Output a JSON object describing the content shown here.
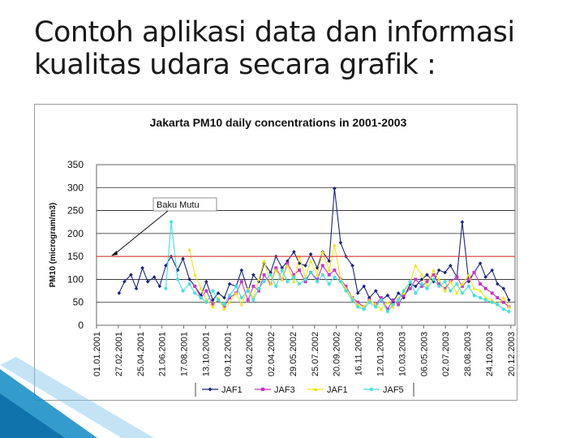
{
  "slide": {
    "title_line1": "Contoh aplikasi data dan informasi",
    "title_line2": "kualitas udara secara grafik :"
  },
  "colors": {
    "JAF1_navy": "#1a237e",
    "JAF3": "#cc33cc",
    "JAF1_yellow": "#f0e610",
    "JAF5": "#40e0e0",
    "baku_mutu": "#e04040",
    "decoration": "#1e90c8"
  },
  "chart_data": {
    "type": "line",
    "title": "Jakarta PM10 daily concentrations in 2001-2003",
    "ylabel": "PM10 (microgram/m3)",
    "xlabel": "",
    "ylim": [
      0,
      350
    ],
    "yticks": [
      0,
      50,
      100,
      150,
      200,
      250,
      300,
      350
    ],
    "xlim": [
      "2001-01-01",
      "2003-12-31"
    ],
    "xtick_labels": [
      "01.01.2001",
      "27.02.2001",
      "25.04.2001",
      "21.06.2001",
      "17.08.2001",
      "13.10.2001",
      "09.12.2001",
      "04.02.2002",
      "02.04.2002",
      "29.05.2002",
      "25.07.2002",
      "20.09.2002",
      "16.11.2002",
      "12.01.2003",
      "10.03.2003",
      "06.05.2003",
      "02.07.2003",
      "28.08.2003",
      "24.10.2003",
      "20.12.2003"
    ],
    "grid": "horizontal",
    "reference_line": {
      "value": 150,
      "label": "Baku Mutu"
    },
    "legend_position": "bottom",
    "series": [
      {
        "name": "JAF1",
        "color": "#1a237e",
        "marker": "diamond",
        "x": [
          "2001-03-01",
          "2001-03-15",
          "2001-04-01",
          "2001-04-15",
          "2001-05-01",
          "2001-05-15",
          "2001-06-01",
          "2001-06-15",
          "2001-07-01",
          "2001-07-15",
          "2001-08-01",
          "2001-08-15",
          "2001-09-01",
          "2001-09-15",
          "2001-10-01",
          "2001-10-15",
          "2001-11-01",
          "2001-11-15",
          "2001-12-01",
          "2001-12-15",
          "2002-01-01",
          "2002-01-15",
          "2002-02-01",
          "2002-02-15",
          "2002-03-01",
          "2002-03-15",
          "2002-04-01",
          "2002-04-15",
          "2002-05-01",
          "2002-05-15",
          "2002-06-01",
          "2002-06-15",
          "2002-07-01",
          "2002-07-15",
          "2002-08-01",
          "2002-08-15",
          "2002-09-01",
          "2002-09-15",
          "2002-10-01",
          "2002-10-15",
          "2002-11-01",
          "2002-11-15",
          "2002-12-01",
          "2002-12-15",
          "2003-01-01",
          "2003-01-15",
          "2003-02-01",
          "2003-02-15",
          "2003-03-01",
          "2003-03-15",
          "2003-04-01",
          "2003-04-15",
          "2003-05-01",
          "2003-05-15",
          "2003-06-01",
          "2003-06-15",
          "2003-07-01",
          "2003-07-15",
          "2003-08-01",
          "2003-08-15",
          "2003-09-01",
          "2003-09-15",
          "2003-10-01",
          "2003-10-15",
          "2003-11-01",
          "2003-11-15",
          "2003-12-01",
          "2003-12-15"
        ],
        "values": [
          70,
          95,
          110,
          80,
          125,
          95,
          105,
          85,
          130,
          150,
          120,
          145,
          100,
          85,
          65,
          95,
          55,
          70,
          60,
          90,
          85,
          120,
          75,
          110,
          95,
          135,
          115,
          150,
          125,
          140,
          160,
          135,
          130,
          155,
          125,
          160,
          140,
          298,
          180,
          150,
          130,
          70,
          85,
          60,
          75,
          55,
          65,
          50,
          70,
          60,
          90,
          85,
          100,
          110,
          95,
          120,
          115,
          130,
          105,
          225,
          95,
          115,
          135,
          105,
          120,
          90,
          80,
          55
        ]
      },
      {
        "name": "JAF3",
        "color": "#cc33cc",
        "marker": "square",
        "x": [
          "2001-09-15",
          "2001-10-01",
          "2001-10-15",
          "2001-11-01",
          "2001-11-15",
          "2001-12-01",
          "2001-12-15",
          "2002-01-01",
          "2002-01-15",
          "2002-02-01",
          "2002-02-15",
          "2002-03-01",
          "2002-03-15",
          "2002-04-01",
          "2002-04-15",
          "2002-05-01",
          "2002-05-15",
          "2002-06-01",
          "2002-06-15",
          "2002-07-01",
          "2002-07-15",
          "2002-08-01",
          "2002-08-15",
          "2002-09-01",
          "2002-09-15",
          "2002-10-01",
          "2002-10-15",
          "2002-11-01",
          "2002-11-15",
          "2002-12-01",
          "2002-12-15",
          "2003-01-01",
          "2003-01-15",
          "2003-02-01",
          "2003-02-15",
          "2003-03-01",
          "2003-03-15",
          "2003-04-01",
          "2003-04-15",
          "2003-05-01",
          "2003-05-15",
          "2003-06-01",
          "2003-06-15",
          "2003-07-01",
          "2003-07-15",
          "2003-08-01",
          "2003-08-15",
          "2003-09-01",
          "2003-09-15",
          "2003-10-01",
          "2003-10-15",
          "2003-11-01",
          "2003-11-15",
          "2003-12-01",
          "2003-12-15"
        ],
        "values": [
          85,
          60,
          75,
          45,
          55,
          40,
          60,
          70,
          95,
          55,
          85,
          75,
          110,
          90,
          125,
          100,
          135,
          110,
          120,
          95,
          115,
          100,
          130,
          110,
          120,
          100,
          85,
          60,
          50,
          40,
          55,
          45,
          60,
          35,
          55,
          45,
          65,
          80,
          100,
          85,
          95,
          110,
          90,
          80,
          95,
          105,
          85,
          100,
          115,
          90,
          80,
          70,
          60,
          50,
          40
        ]
      },
      {
        "name": "JAF1",
        "color": "#f0e610",
        "marker": "triangle",
        "x": [
          "2001-09-01",
          "2001-09-15",
          "2001-10-01",
          "2001-10-15",
          "2001-11-01",
          "2001-11-15",
          "2001-12-01",
          "2001-12-15",
          "2002-01-01",
          "2002-01-15",
          "2002-02-01",
          "2002-02-15",
          "2002-03-01",
          "2002-03-15",
          "2002-04-01",
          "2002-04-15",
          "2002-05-01",
          "2002-05-15",
          "2002-06-01",
          "2002-06-15",
          "2002-07-01",
          "2002-07-15",
          "2002-08-01",
          "2002-08-15",
          "2002-09-01",
          "2002-09-15",
          "2002-10-01",
          "2002-10-15",
          "2002-11-01",
          "2002-11-15",
          "2002-12-01",
          "2002-12-15",
          "2003-01-01",
          "2003-01-15",
          "2003-02-01",
          "2003-02-15",
          "2003-03-01",
          "2003-03-15",
          "2003-04-01",
          "2003-04-15",
          "2003-05-01",
          "2003-05-15",
          "2003-06-01",
          "2003-06-15",
          "2003-07-01",
          "2003-07-15",
          "2003-08-01",
          "2003-08-15",
          "2003-09-01",
          "2003-09-15",
          "2003-10-01",
          "2003-10-15",
          "2003-11-01",
          "2003-11-15",
          "2003-12-01",
          "2003-12-15"
        ],
        "values": [
          165,
          110,
          80,
          55,
          40,
          60,
          35,
          50,
          70,
          45,
          80,
          60,
          100,
          140,
          90,
          120,
          100,
          130,
          95,
          150,
          105,
          140,
          110,
          160,
          120,
          175,
          100,
          80,
          60,
          45,
          40,
          55,
          45,
          35,
          50,
          40,
          60,
          70,
          95,
          130,
          110,
          85,
          120,
          100,
          75,
          95,
          70,
          90,
          110,
          80,
          75,
          60,
          55,
          45,
          60,
          40
        ]
      },
      {
        "name": "JAF5",
        "color": "#40e0e0",
        "marker": "star",
        "x": [
          "2001-07-01",
          "2001-07-15",
          "2001-08-01",
          "2001-08-15",
          "2001-09-01",
          "2001-09-15",
          "2001-10-01",
          "2001-10-15",
          "2001-11-01",
          "2001-11-15",
          "2001-12-01",
          "2001-12-15",
          "2002-01-01",
          "2002-01-15",
          "2002-02-01",
          "2002-02-15",
          "2002-03-01",
          "2002-03-15",
          "2002-04-01",
          "2002-04-15",
          "2002-05-01",
          "2002-05-15",
          "2002-06-01",
          "2002-06-15",
          "2002-07-01",
          "2002-07-15",
          "2002-08-01",
          "2002-08-15",
          "2002-09-01",
          "2002-09-15",
          "2002-10-01",
          "2002-10-15",
          "2002-11-01",
          "2002-11-15",
          "2002-12-01",
          "2002-12-15",
          "2003-01-01",
          "2003-01-15",
          "2003-02-01",
          "2003-02-15",
          "2003-03-01",
          "2003-03-15",
          "2003-04-01",
          "2003-04-15",
          "2003-05-01",
          "2003-05-15",
          "2003-06-01",
          "2003-06-15",
          "2003-07-01",
          "2003-07-15",
          "2003-08-01",
          "2003-08-15",
          "2003-09-01",
          "2003-09-15",
          "2003-10-01",
          "2003-10-15",
          "2003-11-01",
          "2003-11-15",
          "2003-12-01",
          "2003-12-15"
        ],
        "values": [
          80,
          225,
          100,
          75,
          90,
          70,
          60,
          50,
          75,
          55,
          45,
          65,
          85,
          60,
          75,
          55,
          80,
          95,
          110,
          85,
          120,
          95,
          105,
          90,
          100,
          115,
          95,
          110,
          90,
          105,
          95,
          75,
          55,
          40,
          35,
          50,
          40,
          55,
          30,
          45,
          55,
          75,
          95,
          70,
          90,
          80,
          100,
          85,
          95,
          75,
          90,
          70,
          85,
          65,
          60,
          55,
          50,
          45,
          35,
          30
        ]
      }
    ]
  }
}
